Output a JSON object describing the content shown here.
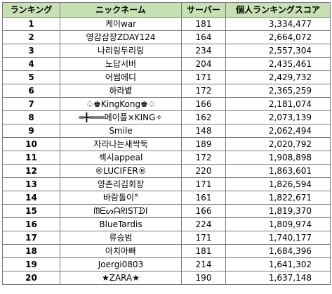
{
  "table": {
    "headers": {
      "rank": "ランキング",
      "nickname": "ニックネーム",
      "server": "サーバー",
      "score": "個人ランキングスコア"
    },
    "header_color": "#c6e0b4",
    "rows": [
      {
        "rank": "1",
        "nickname": "케이war",
        "server": "181",
        "score": "3,334,477"
      },
      {
        "rank": "2",
        "nickname": "영감삼장ZDAY124",
        "server": "164",
        "score": "2,664,072"
      },
      {
        "rank": "3",
        "nickname": "나리링두리링",
        "server": "234",
        "score": "2,557,304"
      },
      {
        "rank": "4",
        "nickname": "노답서버",
        "server": "204",
        "score": "2,435,461"
      },
      {
        "rank": "5",
        "nickname": "어썸에디",
        "server": "171",
        "score": "2,429,732"
      },
      {
        "rank": "6",
        "nickname": "하라볕",
        "server": "172",
        "score": "2,365,259"
      },
      {
        "rank": "7",
        "nickname": "♤♚KingKong♚♤",
        "server": "166",
        "score": "2,181,074"
      },
      {
        "rank": "8",
        "nickname": "═╋═══메이플×KING✧",
        "server": "162",
        "score": "2,073,139"
      },
      {
        "rank": "9",
        "nickname": "Smile",
        "server": "148",
        "score": "2,062,494"
      },
      {
        "rank": "10",
        "nickname": "자라나는새싹둑",
        "server": "189",
        "score": "2,020,792"
      },
      {
        "rank": "11",
        "nickname": "섹시appeal",
        "server": "172",
        "score": "1,908,898"
      },
      {
        "rank": "12",
        "nickname": "®LUCIFER®",
        "server": "220",
        "score": "1,863,601"
      },
      {
        "rank": "13",
        "nickname": "양촌리김회장",
        "server": "171",
        "score": "1,826,594"
      },
      {
        "rank": "14",
        "nickname": "바람돌이°",
        "server": "161",
        "score": "1,822,671"
      },
      {
        "rank": "15",
        "nickname": "ᗰᗴᔕᗩᖇISTᗫI",
        "server": "166",
        "score": "1,819,370"
      },
      {
        "rank": "16",
        "nickname": "BlueTardis",
        "server": "224",
        "score": "1,809,974"
      },
      {
        "rank": "17",
        "nickname": "류승범",
        "server": "171",
        "score": "1,740,177"
      },
      {
        "rank": "18",
        "nickname": "아치아빠",
        "server": "181",
        "score": "1,684,396"
      },
      {
        "rank": "19",
        "nickname": "Joergi0803",
        "server": "214",
        "score": "1,641,302"
      },
      {
        "rank": "20",
        "nickname": "★ZARA★",
        "server": "190",
        "score": "1,637,148"
      }
    ]
  }
}
